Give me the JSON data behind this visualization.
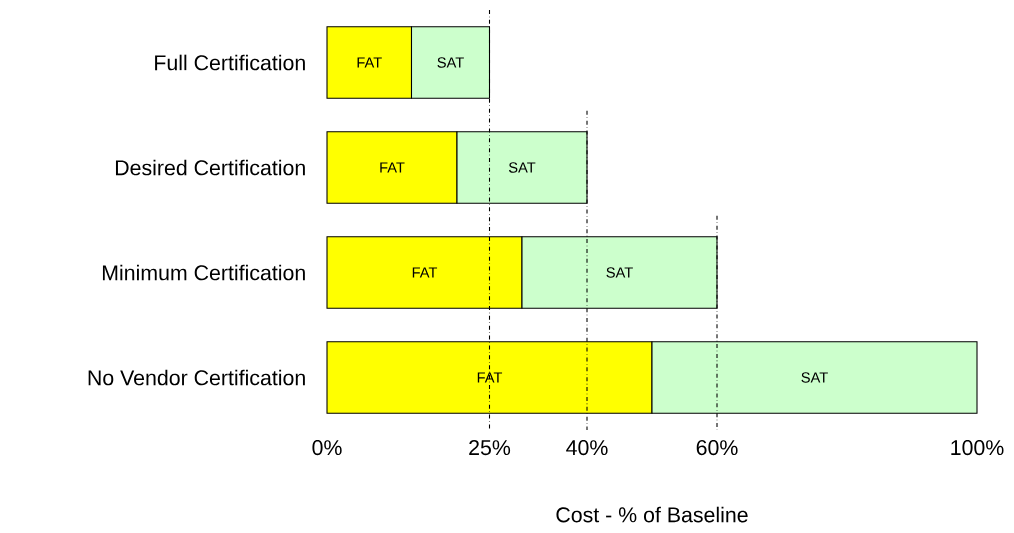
{
  "chart_data": {
    "type": "bar",
    "orientation": "horizontal",
    "stacked": true,
    "xlabel": "Cost - % of Baseline",
    "categories": [
      "Full Certification",
      "Desired Certification",
      "Minimum Certification",
      "No Vendor Certification"
    ],
    "series": [
      {
        "name": "FAT",
        "color": "#ffff00",
        "values": [
          13,
          20,
          30,
          50
        ]
      },
      {
        "name": "SAT",
        "color": "#ccffcc",
        "values": [
          12,
          20,
          30,
          50
        ]
      }
    ],
    "xlim": [
      0,
      100
    ],
    "xticks": [
      {
        "value": 0,
        "label": "0%"
      },
      {
        "value": 25,
        "label": "25%"
      },
      {
        "value": 40,
        "label": "40%"
      },
      {
        "value": 60,
        "label": "60%"
      },
      {
        "value": 100,
        "label": "100%"
      }
    ],
    "ref_lines": [
      {
        "axis": "x",
        "value": 25,
        "color": "#000000",
        "line_style": "dashdot"
      },
      {
        "axis": "x",
        "value": 40,
        "color": "#000000",
        "line_style": "dashdot"
      },
      {
        "axis": "x",
        "value": 60,
        "color": "#000000",
        "line_style": "dashdot"
      }
    ],
    "grid": false
  }
}
